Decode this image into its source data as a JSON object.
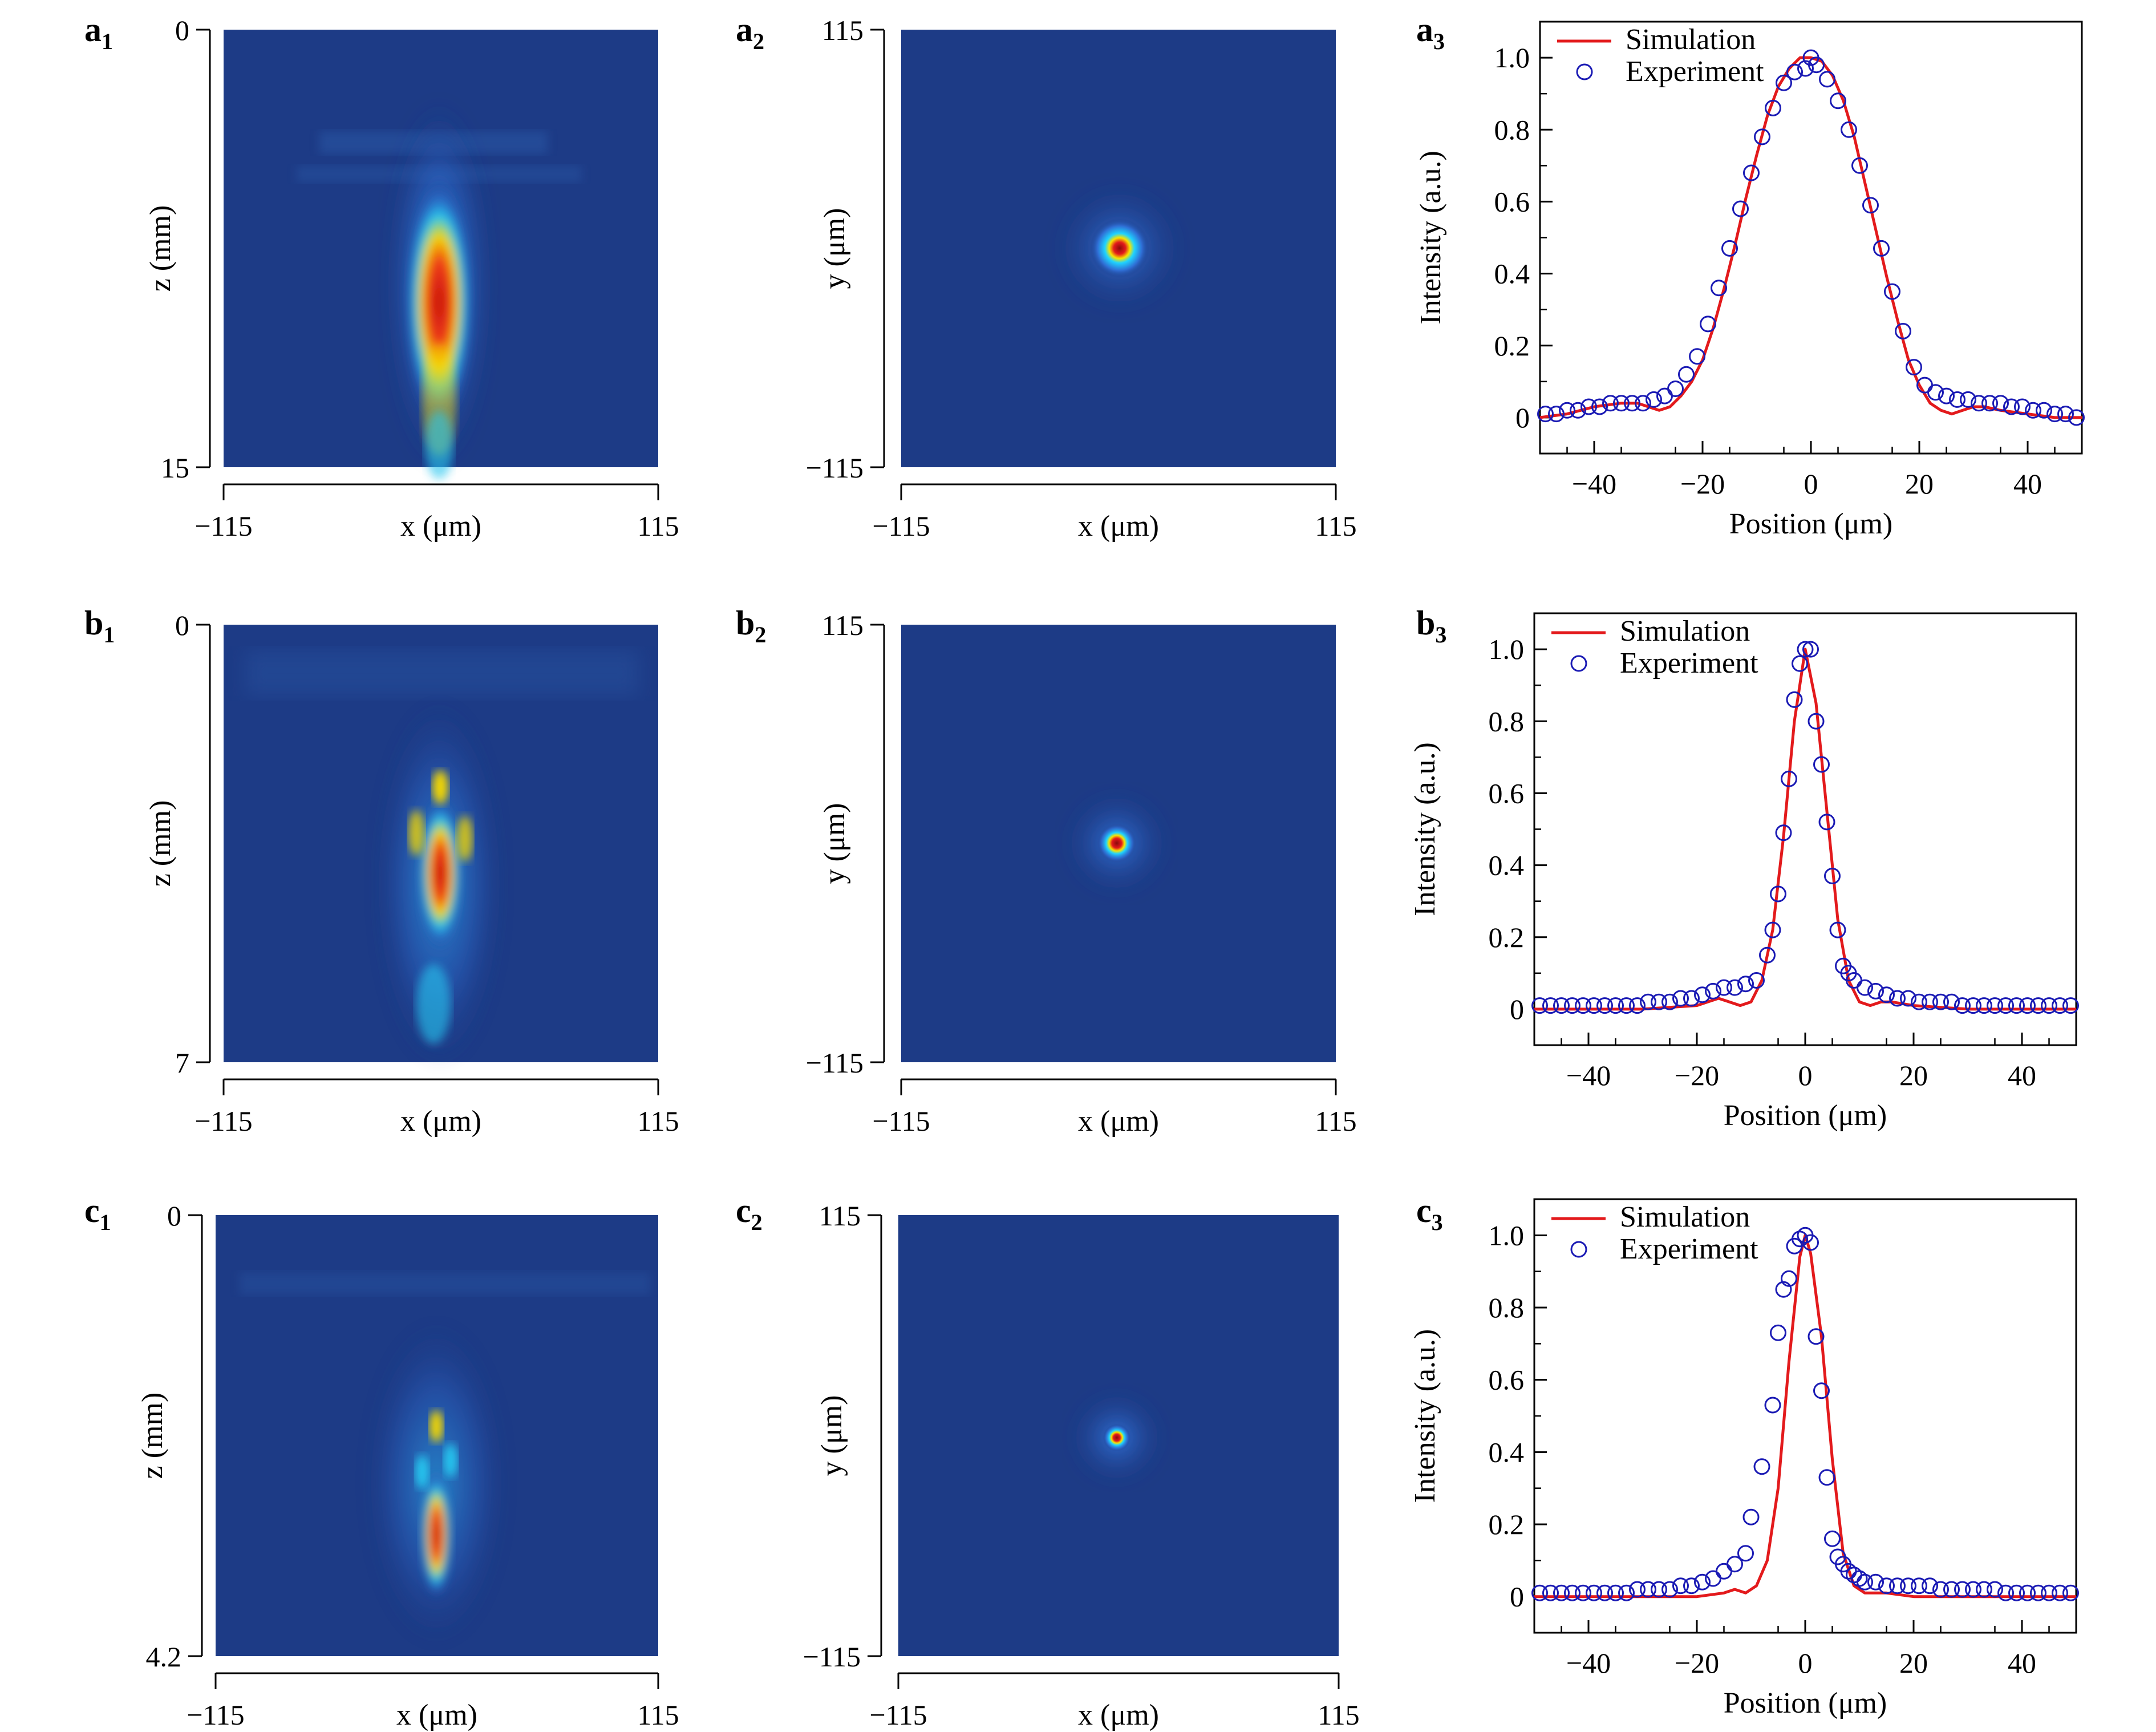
{
  "colors": {
    "simulation": "#e31a1c",
    "experiment": "#1a1ab4",
    "background_map": "#1d3b86"
  },
  "panels": [
    {
      "id": "a",
      "labels": {
        "p1": "a",
        "p2": "a",
        "p3": "a"
      },
      "map1": {
        "x_min": "−115",
        "x_max": "115",
        "xlabel": "x (μm)",
        "z_top": "0",
        "z_bottom": "15",
        "ylabel": "z (mm)"
      },
      "map2": {
        "x_min": "−115",
        "x_max": "115",
        "xlabel": "x (μm)",
        "y_top": "115",
        "y_bottom": "−115",
        "ylabel": "y (μm)"
      }
    },
    {
      "id": "b",
      "labels": {
        "p1": "b",
        "p2": "b",
        "p3": "b"
      },
      "map1": {
        "x_min": "−115",
        "x_max": "115",
        "xlabel": "x (μm)",
        "z_top": "0",
        "z_bottom": "7",
        "ylabel": "z (mm)"
      },
      "map2": {
        "x_min": "−115",
        "x_max": "115",
        "xlabel": "x (μm)",
        "y_top": "115",
        "y_bottom": "−115",
        "ylabel": "y (μm)"
      }
    },
    {
      "id": "c",
      "labels": {
        "p1": "c",
        "p2": "c",
        "p3": "c"
      },
      "map1": {
        "x_min": "−115",
        "x_max": "115",
        "xlabel": "x (μm)",
        "z_top": "0",
        "z_bottom": "4.2",
        "ylabel": "z (mm)"
      },
      "map2": {
        "x_min": "−115",
        "x_max": "115",
        "xlabel": "x (μm)",
        "y_top": "115",
        "y_bottom": "−115",
        "ylabel": "y (μm)"
      }
    }
  ],
  "chart_data": [
    {
      "id": "a3",
      "type": "line",
      "xlabel": "Position (μm)",
      "ylabel": "Intensity (a.u.)",
      "xlim": [
        -50,
        50
      ],
      "ylim": [
        -0.1,
        1.1
      ],
      "xticks": [
        -40,
        -20,
        0,
        20,
        40
      ],
      "xtick_labels": [
        "−40",
        "−20",
        "0",
        "20",
        "40"
      ],
      "yticks": [
        0,
        0.2,
        0.4,
        0.6,
        0.8,
        1.0
      ],
      "ytick_labels": [
        "0",
        "0.2",
        "0.4",
        "0.6",
        "0.8",
        "1.0"
      ],
      "legend": {
        "position": "top-left",
        "simulation": "Simulation",
        "experiment": "Experiment"
      },
      "simulation": {
        "x": [
          -50,
          -45,
          -40,
          -35,
          -32,
          -30,
          -28,
          -26,
          -24,
          -22,
          -20,
          -18,
          -16,
          -14,
          -12,
          -10,
          -8,
          -6,
          -4,
          -2,
          0,
          2,
          4,
          6,
          8,
          10,
          12,
          14,
          16,
          18,
          20,
          22,
          24,
          26,
          28,
          30,
          32,
          35,
          40,
          45,
          50
        ],
        "y": [
          0.0,
          0.01,
          0.03,
          0.04,
          0.04,
          0.03,
          0.02,
          0.03,
          0.06,
          0.1,
          0.16,
          0.25,
          0.36,
          0.48,
          0.61,
          0.73,
          0.84,
          0.92,
          0.97,
          1.0,
          1.0,
          0.99,
          0.95,
          0.88,
          0.78,
          0.65,
          0.52,
          0.39,
          0.27,
          0.16,
          0.09,
          0.04,
          0.02,
          0.01,
          0.02,
          0.03,
          0.03,
          0.02,
          0.01,
          0.0,
          0.0
        ]
      },
      "experiment": {
        "x": [
          -49,
          -47,
          -45,
          -43,
          -41,
          -39,
          -37,
          -35,
          -33,
          -31,
          -29,
          -27,
          -25,
          -23,
          -21,
          -19,
          -17,
          -15,
          -13,
          -11,
          -9,
          -7,
          -5,
          -3,
          -1,
          0,
          1,
          3,
          5,
          7,
          9,
          11,
          13,
          15,
          17,
          19,
          21,
          23,
          25,
          27,
          29,
          31,
          33,
          35,
          37,
          39,
          41,
          43,
          45,
          47,
          49
        ],
        "y": [
          0.01,
          0.01,
          0.02,
          0.02,
          0.03,
          0.03,
          0.04,
          0.04,
          0.04,
          0.04,
          0.05,
          0.06,
          0.08,
          0.12,
          0.17,
          0.26,
          0.36,
          0.47,
          0.58,
          0.68,
          0.78,
          0.86,
          0.93,
          0.96,
          0.97,
          1.0,
          0.98,
          0.94,
          0.88,
          0.8,
          0.7,
          0.59,
          0.47,
          0.35,
          0.24,
          0.14,
          0.09,
          0.07,
          0.06,
          0.05,
          0.05,
          0.04,
          0.04,
          0.04,
          0.03,
          0.03,
          0.02,
          0.02,
          0.01,
          0.01,
          0.0
        ]
      }
    },
    {
      "id": "b3",
      "type": "line",
      "xlabel": "Position (μm)",
      "ylabel": "Intensity (a.u.)",
      "xlim": [
        -50,
        50
      ],
      "ylim": [
        -0.1,
        1.1
      ],
      "xticks": [
        -40,
        -20,
        0,
        20,
        40
      ],
      "xtick_labels": [
        "−40",
        "−20",
        "0",
        "20",
        "40"
      ],
      "yticks": [
        0,
        0.2,
        0.4,
        0.6,
        0.8,
        1.0
      ],
      "ytick_labels": [
        "0",
        "0.2",
        "0.4",
        "0.6",
        "0.8",
        "1.0"
      ],
      "legend": {
        "position": "top-left",
        "simulation": "Simulation",
        "experiment": "Experiment"
      },
      "simulation": {
        "x": [
          -50,
          -30,
          -20,
          -18,
          -16,
          -14,
          -12,
          -10,
          -8,
          -6,
          -4,
          -2,
          0,
          2,
          4,
          6,
          8,
          10,
          12,
          14,
          16,
          20,
          30,
          50
        ],
        "y": [
          0.0,
          0.0,
          0.01,
          0.02,
          0.03,
          0.02,
          0.01,
          0.02,
          0.08,
          0.22,
          0.48,
          0.8,
          1.0,
          0.85,
          0.55,
          0.25,
          0.08,
          0.02,
          0.01,
          0.02,
          0.02,
          0.01,
          0.0,
          0.0
        ]
      },
      "experiment": {
        "x": [
          -49,
          -47,
          -45,
          -43,
          -41,
          -39,
          -37,
          -35,
          -33,
          -31,
          -29,
          -27,
          -25,
          -23,
          -21,
          -19,
          -17,
          -15,
          -13,
          -11,
          -9,
          -7,
          -6,
          -5,
          -4,
          -3,
          -2,
          -1,
          0,
          1,
          2,
          3,
          4,
          5,
          6,
          7,
          8,
          9,
          11,
          13,
          15,
          17,
          19,
          21,
          23,
          25,
          27,
          29,
          31,
          33,
          35,
          37,
          39,
          41,
          43,
          45,
          47,
          49
        ],
        "y": [
          0.01,
          0.01,
          0.01,
          0.01,
          0.01,
          0.01,
          0.01,
          0.01,
          0.01,
          0.01,
          0.02,
          0.02,
          0.02,
          0.03,
          0.03,
          0.04,
          0.05,
          0.06,
          0.06,
          0.07,
          0.08,
          0.15,
          0.22,
          0.32,
          0.49,
          0.64,
          0.86,
          0.96,
          1.0,
          1.0,
          0.8,
          0.68,
          0.52,
          0.37,
          0.22,
          0.12,
          0.1,
          0.08,
          0.06,
          0.05,
          0.04,
          0.03,
          0.03,
          0.02,
          0.02,
          0.02,
          0.02,
          0.01,
          0.01,
          0.01,
          0.01,
          0.01,
          0.01,
          0.01,
          0.01,
          0.01,
          0.01,
          0.01
        ]
      }
    },
    {
      "id": "c3",
      "type": "line",
      "xlabel": "Position (μm)",
      "ylabel": "Intensity (a.u.)",
      "xlim": [
        -50,
        50
      ],
      "ylim": [
        -0.1,
        1.1
      ],
      "xticks": [
        -40,
        -20,
        0,
        20,
        40
      ],
      "xtick_labels": [
        "−40",
        "−20",
        "0",
        "20",
        "40"
      ],
      "yticks": [
        0,
        0.2,
        0.4,
        0.6,
        0.8,
        1.0
      ],
      "ytick_labels": [
        "0",
        "0.2",
        "0.4",
        "0.6",
        "0.8",
        "1.0"
      ],
      "legend": {
        "position": "top-left",
        "simulation": "Simulation",
        "experiment": "Experiment"
      },
      "simulation": {
        "x": [
          -50,
          -30,
          -20,
          -15,
          -13,
          -11,
          -9,
          -7,
          -5,
          -3,
          -1,
          0,
          1,
          3,
          5,
          7,
          9,
          11,
          13,
          15,
          20,
          30,
          50
        ],
        "y": [
          0.0,
          0.0,
          0.0,
          0.01,
          0.02,
          0.01,
          0.03,
          0.1,
          0.3,
          0.65,
          0.94,
          1.0,
          0.95,
          0.72,
          0.38,
          0.12,
          0.03,
          0.01,
          0.01,
          0.01,
          0.0,
          0.0,
          0.0
        ]
      },
      "experiment": {
        "x": [
          -49,
          -47,
          -45,
          -43,
          -41,
          -39,
          -37,
          -35,
          -33,
          -31,
          -29,
          -27,
          -25,
          -23,
          -21,
          -19,
          -17,
          -15,
          -13,
          -11,
          -10,
          -8,
          -6,
          -5,
          -4,
          -3,
          -2,
          -1,
          0,
          1,
          2,
          3,
          4,
          5,
          6,
          7,
          8,
          9,
          10,
          11,
          13,
          15,
          17,
          19,
          21,
          23,
          25,
          27,
          29,
          31,
          33,
          35,
          37,
          39,
          41,
          43,
          45,
          47,
          49
        ],
        "y": [
          0.01,
          0.01,
          0.01,
          0.01,
          0.01,
          0.01,
          0.01,
          0.01,
          0.01,
          0.02,
          0.02,
          0.02,
          0.02,
          0.03,
          0.03,
          0.04,
          0.05,
          0.07,
          0.09,
          0.12,
          0.22,
          0.36,
          0.53,
          0.73,
          0.85,
          0.88,
          0.97,
          0.99,
          1.0,
          0.98,
          0.72,
          0.57,
          0.33,
          0.16,
          0.11,
          0.09,
          0.07,
          0.06,
          0.05,
          0.04,
          0.04,
          0.03,
          0.03,
          0.03,
          0.03,
          0.03,
          0.02,
          0.02,
          0.02,
          0.02,
          0.02,
          0.02,
          0.01,
          0.01,
          0.01,
          0.01,
          0.01,
          0.01,
          0.01
        ]
      }
    }
  ]
}
